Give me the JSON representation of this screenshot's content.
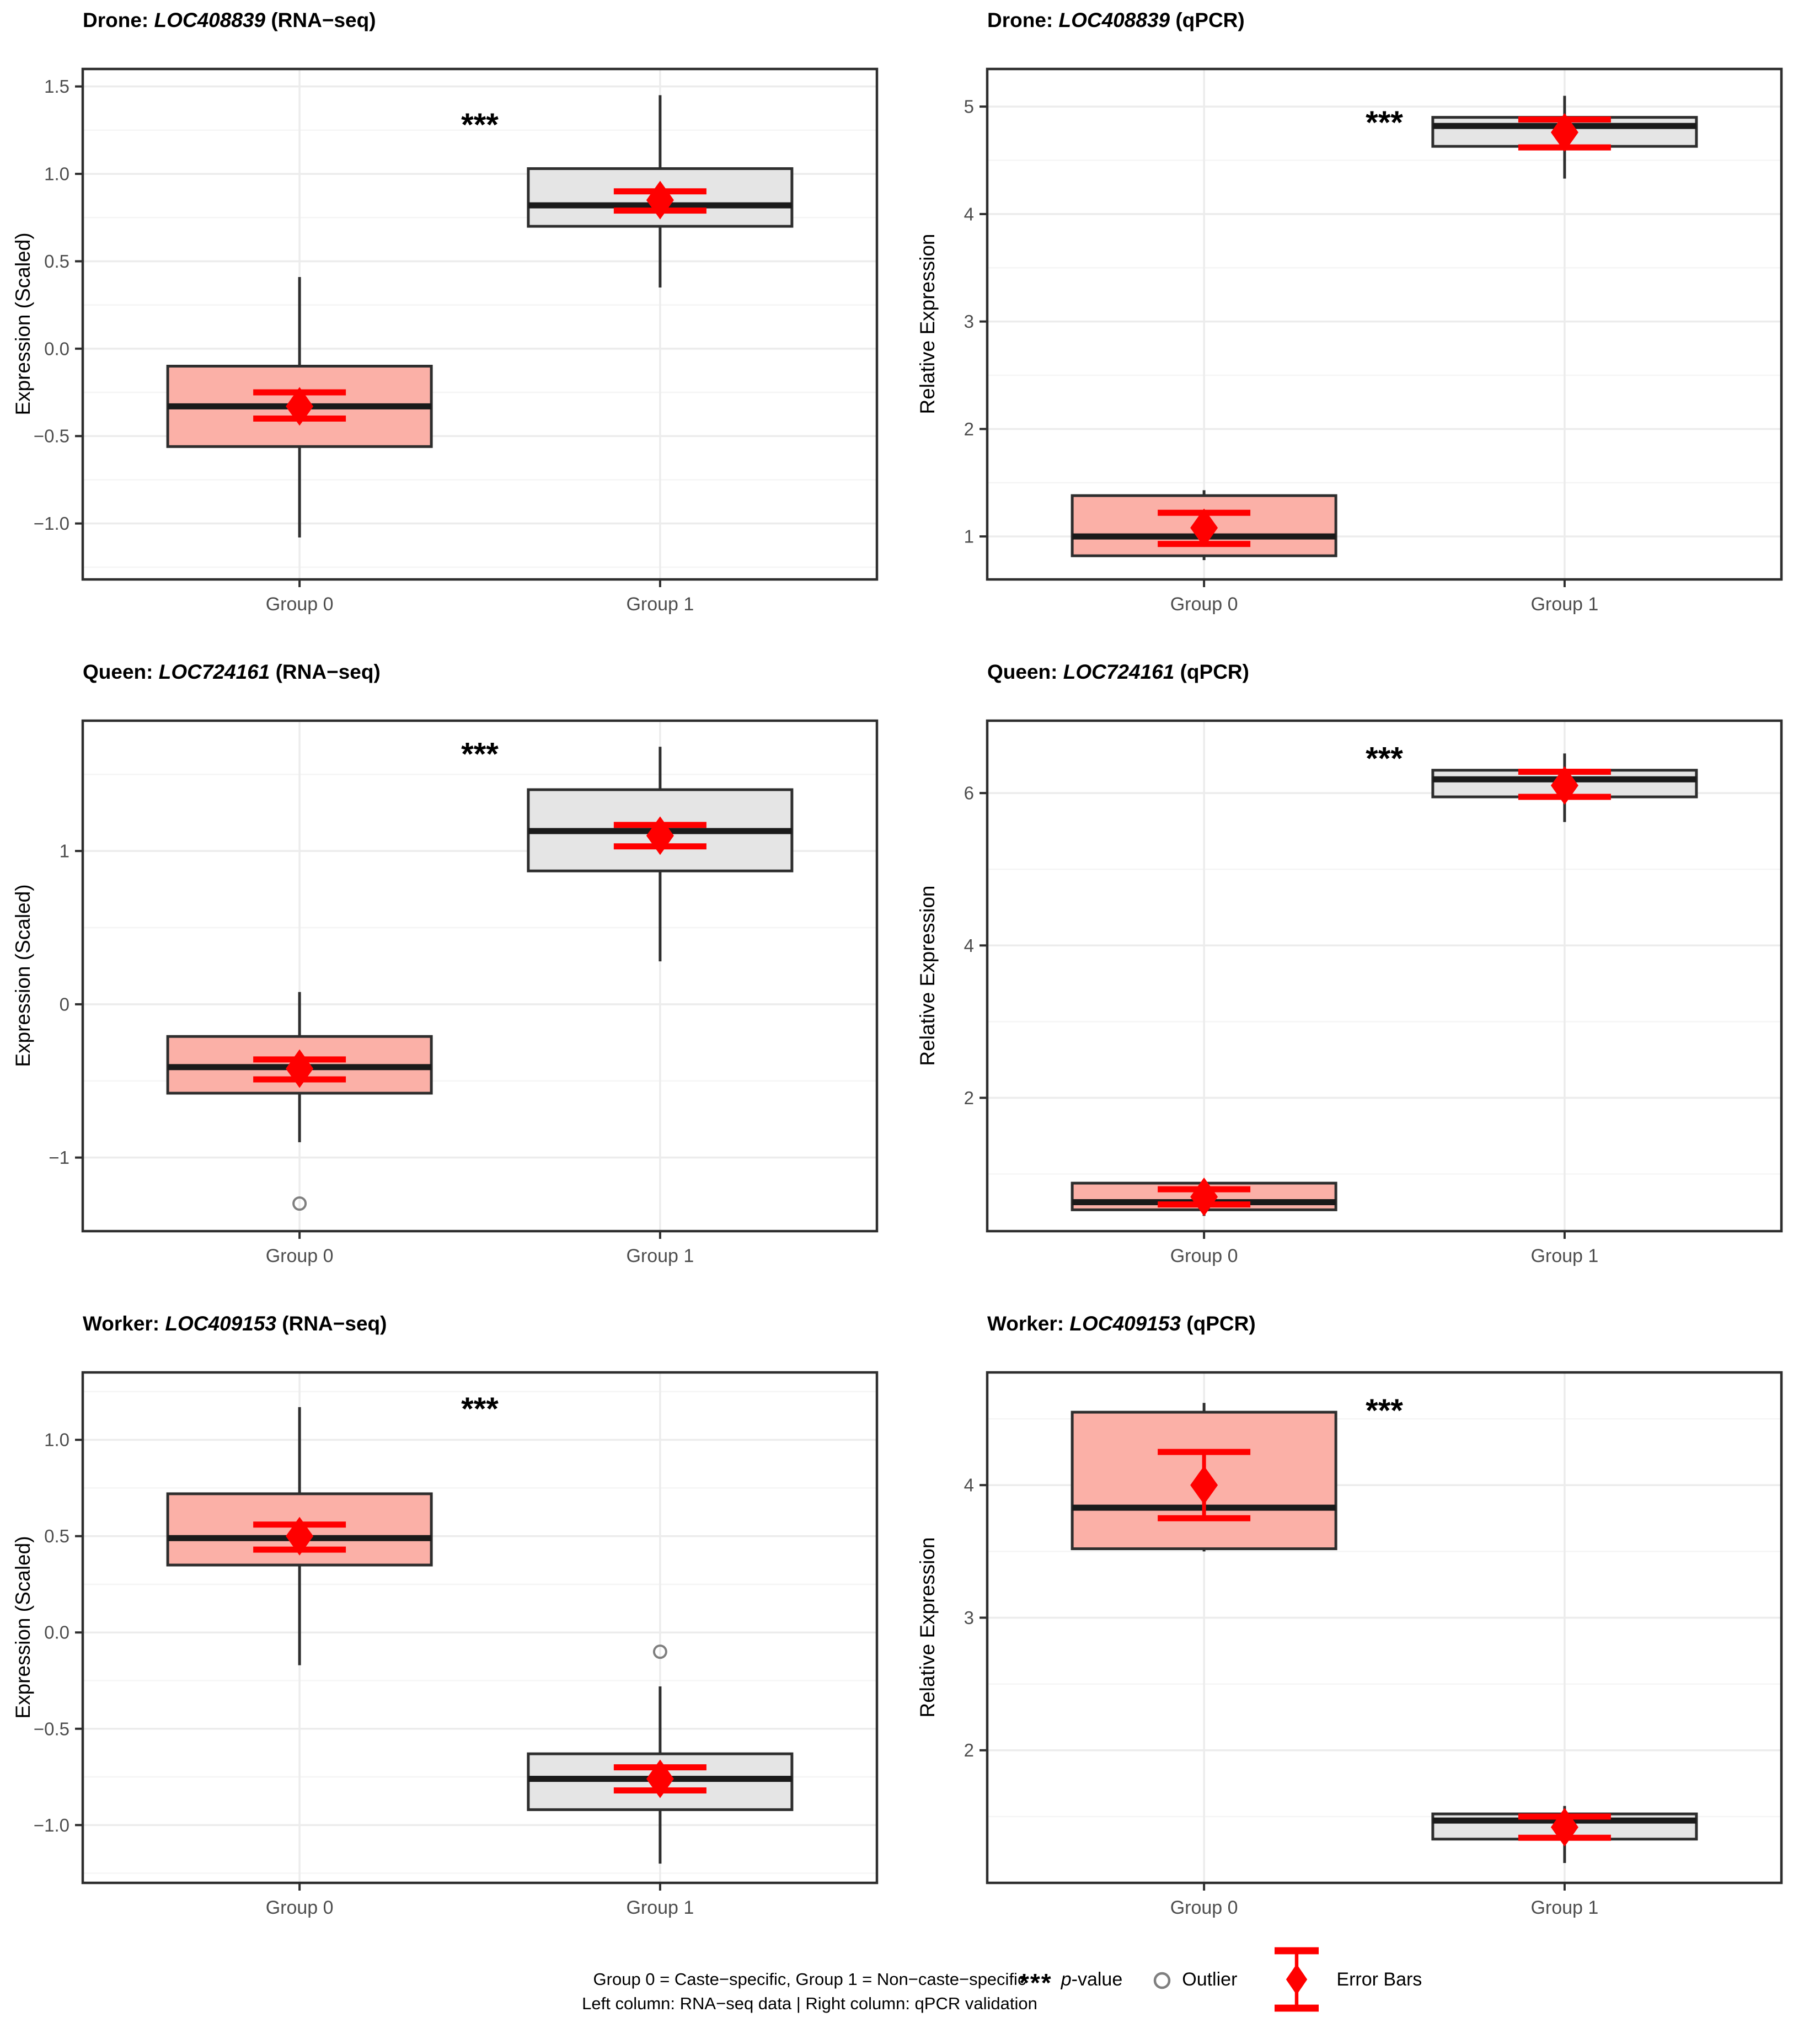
{
  "figure": {
    "caption_line1": "Group 0 = Caste−specific, Group 1 = Non−caste−specific",
    "caption_line2": "Left column: RNA−seq data | Right column: qPCR validation",
    "legend": {
      "pvalue_symbol": "***",
      "pvalue_p": "p",
      "pvalue_suffix": "-value",
      "outlier_label": "Outlier",
      "errorbar_label": "Error Bars"
    },
    "colors": {
      "group0_fill": "#FBB0A7",
      "group1_fill": "#E5E5E5",
      "box_border": "#2E2E2E",
      "median": "#1A1A1A",
      "error": "#FF0000",
      "grid_major": "#ECECEC",
      "grid_minor": "#F5F5F5",
      "panel_border": "#2E2E2E",
      "tick_label": "#4D4D4D",
      "outlier_stroke": "#7F7F7F"
    }
  },
  "chart_data": [
    {
      "type": "box",
      "title_prefix": "Drone: ",
      "gene": "LOC408839",
      "title_suffix": " (RNA−seq)",
      "ylabel": "Expression (Scaled)",
      "ylim": [
        -1.32,
        1.6
      ],
      "yticks": [
        {
          "v": 1.5,
          "label": "1.5"
        },
        {
          "v": 1.0,
          "label": "1.0"
        },
        {
          "v": 0.5,
          "label": "0.5"
        },
        {
          "v": 0.0,
          "label": "0.0"
        },
        {
          "v": -0.5,
          "label": "−0.5"
        },
        {
          "v": -1.0,
          "label": "−1.0"
        }
      ],
      "yminor": [
        1.25,
        0.75,
        0.25,
        -0.25,
        -0.75,
        -1.25
      ],
      "significance": {
        "text": "***",
        "y": 1.28
      },
      "categories": [
        "Group 0",
        "Group 1"
      ],
      "boxes": [
        {
          "group": "Group 0",
          "fill": "group0",
          "whisker_low": -1.08,
          "q1": -0.56,
          "median": -0.33,
          "q3": -0.1,
          "whisker_high": 0.41,
          "outliers": [],
          "error_bar": {
            "center": -0.33,
            "low": -0.4,
            "high": -0.25
          }
        },
        {
          "group": "Group 1",
          "fill": "group1",
          "whisker_low": 0.35,
          "q1": 0.7,
          "median": 0.82,
          "q3": 1.03,
          "whisker_high": 1.45,
          "outliers": [],
          "error_bar": {
            "center": 0.85,
            "low": 0.79,
            "high": 0.9
          }
        }
      ]
    },
    {
      "type": "box",
      "title_prefix": "Drone: ",
      "gene": "LOC408839",
      "title_suffix": " (qPCR)",
      "ylabel": "Relative Expression",
      "ylim": [
        0.6,
        5.35
      ],
      "yticks": [
        {
          "v": 5,
          "label": "5"
        },
        {
          "v": 4,
          "label": "4"
        },
        {
          "v": 3,
          "label": "3"
        },
        {
          "v": 2,
          "label": "2"
        },
        {
          "v": 1,
          "label": "1"
        }
      ],
      "yminor": [
        4.5,
        3.5,
        2.5,
        1.5
      ],
      "significance": {
        "text": "***",
        "y": 4.85
      },
      "categories": [
        "Group 0",
        "Group 1"
      ],
      "boxes": [
        {
          "group": "Group 0",
          "fill": "group0",
          "whisker_low": 0.78,
          "q1": 0.82,
          "median": 1.0,
          "q3": 1.38,
          "whisker_high": 1.43,
          "outliers": [],
          "error_bar": {
            "center": 1.08,
            "low": 0.93,
            "high": 1.22
          }
        },
        {
          "group": "Group 1",
          "fill": "group1",
          "whisker_low": 4.33,
          "q1": 4.63,
          "median": 4.82,
          "q3": 4.9,
          "whisker_high": 5.1,
          "outliers": [],
          "error_bar": {
            "center": 4.76,
            "low": 4.62,
            "high": 4.88
          }
        }
      ]
    },
    {
      "type": "box",
      "title_prefix": "Queen: ",
      "gene": "LOC724161",
      "title_suffix": " (RNA−seq)",
      "ylabel": "Expression (Scaled)",
      "ylim": [
        -1.48,
        1.85
      ],
      "yticks": [
        {
          "v": 1,
          "label": "1"
        },
        {
          "v": 0,
          "label": "0"
        },
        {
          "v": -1,
          "label": "−1"
        }
      ],
      "yminor": [
        1.5,
        0.5,
        -0.5
      ],
      "significance": {
        "text": "***",
        "y": 1.63
      },
      "categories": [
        "Group 0",
        "Group 1"
      ],
      "boxes": [
        {
          "group": "Group 0",
          "fill": "group0",
          "whisker_low": -0.9,
          "q1": -0.58,
          "median": -0.41,
          "q3": -0.21,
          "whisker_high": 0.08,
          "outliers": [
            -1.3
          ],
          "error_bar": {
            "center": -0.42,
            "low": -0.49,
            "high": -0.36
          }
        },
        {
          "group": "Group 1",
          "fill": "group1",
          "whisker_low": 0.28,
          "q1": 0.87,
          "median": 1.13,
          "q3": 1.4,
          "whisker_high": 1.68,
          "outliers": [],
          "error_bar": {
            "center": 1.1,
            "low": 1.03,
            "high": 1.17
          }
        }
      ]
    },
    {
      "type": "box",
      "title_prefix": "Queen: ",
      "gene": "LOC724161",
      "title_suffix": " (qPCR)",
      "ylabel": "Relative Expression",
      "ylim": [
        0.25,
        6.95
      ],
      "yticks": [
        {
          "v": 6,
          "label": "6"
        },
        {
          "v": 4,
          "label": "4"
        },
        {
          "v": 2,
          "label": "2"
        }
      ],
      "yminor": [
        5,
        3,
        1
      ],
      "significance": {
        "text": "***",
        "y": 6.45
      },
      "categories": [
        "Group 0",
        "Group 1"
      ],
      "boxes": [
        {
          "group": "Group 0",
          "fill": "group0",
          "whisker_low": 0.45,
          "q1": 0.53,
          "median": 0.63,
          "q3": 0.88,
          "whisker_high": 0.93,
          "outliers": [],
          "error_bar": {
            "center": 0.7,
            "low": 0.6,
            "high": 0.8
          }
        },
        {
          "group": "Group 1",
          "fill": "group1",
          "whisker_low": 5.62,
          "q1": 5.95,
          "median": 6.18,
          "q3": 6.3,
          "whisker_high": 6.52,
          "outliers": [],
          "error_bar": {
            "center": 6.1,
            "low": 5.95,
            "high": 6.28
          }
        }
      ]
    },
    {
      "type": "box",
      "title_prefix": "Worker: ",
      "gene": "LOC409153",
      "title_suffix": " (RNA−seq)",
      "ylabel": "Expression (Scaled)",
      "ylim": [
        -1.3,
        1.35
      ],
      "yticks": [
        {
          "v": 1.0,
          "label": "1.0"
        },
        {
          "v": 0.5,
          "label": "0.5"
        },
        {
          "v": 0.0,
          "label": "0.0"
        },
        {
          "v": -0.5,
          "label": "−0.5"
        },
        {
          "v": -1.0,
          "label": "−1.0"
        }
      ],
      "yminor": [
        1.25,
        0.75,
        0.25,
        -0.25,
        -0.75,
        -1.25
      ],
      "significance": {
        "text": "***",
        "y": 1.16
      },
      "categories": [
        "Group 0",
        "Group 1"
      ],
      "boxes": [
        {
          "group": "Group 0",
          "fill": "group0",
          "whisker_low": -0.17,
          "q1": 0.35,
          "median": 0.49,
          "q3": 0.72,
          "whisker_high": 1.17,
          "outliers": [],
          "error_bar": {
            "center": 0.5,
            "low": 0.43,
            "high": 0.56
          }
        },
        {
          "group": "Group 1",
          "fill": "group1",
          "whisker_low": -1.2,
          "q1": -0.92,
          "median": -0.76,
          "q3": -0.63,
          "whisker_high": -0.28,
          "outliers": [
            -0.1
          ],
          "error_bar": {
            "center": -0.76,
            "low": -0.82,
            "high": -0.7
          }
        }
      ]
    },
    {
      "type": "box",
      "title_prefix": "Worker: ",
      "gene": "LOC409153",
      "title_suffix": " (qPCR)",
      "ylabel": "Relative Expression",
      "ylim": [
        1.0,
        4.85
      ],
      "yticks": [
        {
          "v": 4,
          "label": "4"
        },
        {
          "v": 3,
          "label": "3"
        },
        {
          "v": 2,
          "label": "2"
        }
      ],
      "yminor": [
        4.5,
        3.5,
        2.5,
        1.5
      ],
      "significance": {
        "text": "***",
        "y": 4.56
      },
      "categories": [
        "Group 0",
        "Group 1"
      ],
      "boxes": [
        {
          "group": "Group 0",
          "fill": "group0",
          "whisker_low": 3.5,
          "q1": 3.52,
          "median": 3.83,
          "q3": 4.55,
          "whisker_high": 4.62,
          "outliers": [],
          "error_bar": {
            "center": 4.0,
            "low": 3.75,
            "high": 4.25
          }
        },
        {
          "group": "Group 1",
          "fill": "group1",
          "whisker_low": 1.15,
          "q1": 1.33,
          "median": 1.47,
          "q3": 1.52,
          "whisker_high": 1.58,
          "outliers": [],
          "error_bar": {
            "center": 1.42,
            "low": 1.34,
            "high": 1.5
          }
        }
      ]
    }
  ]
}
